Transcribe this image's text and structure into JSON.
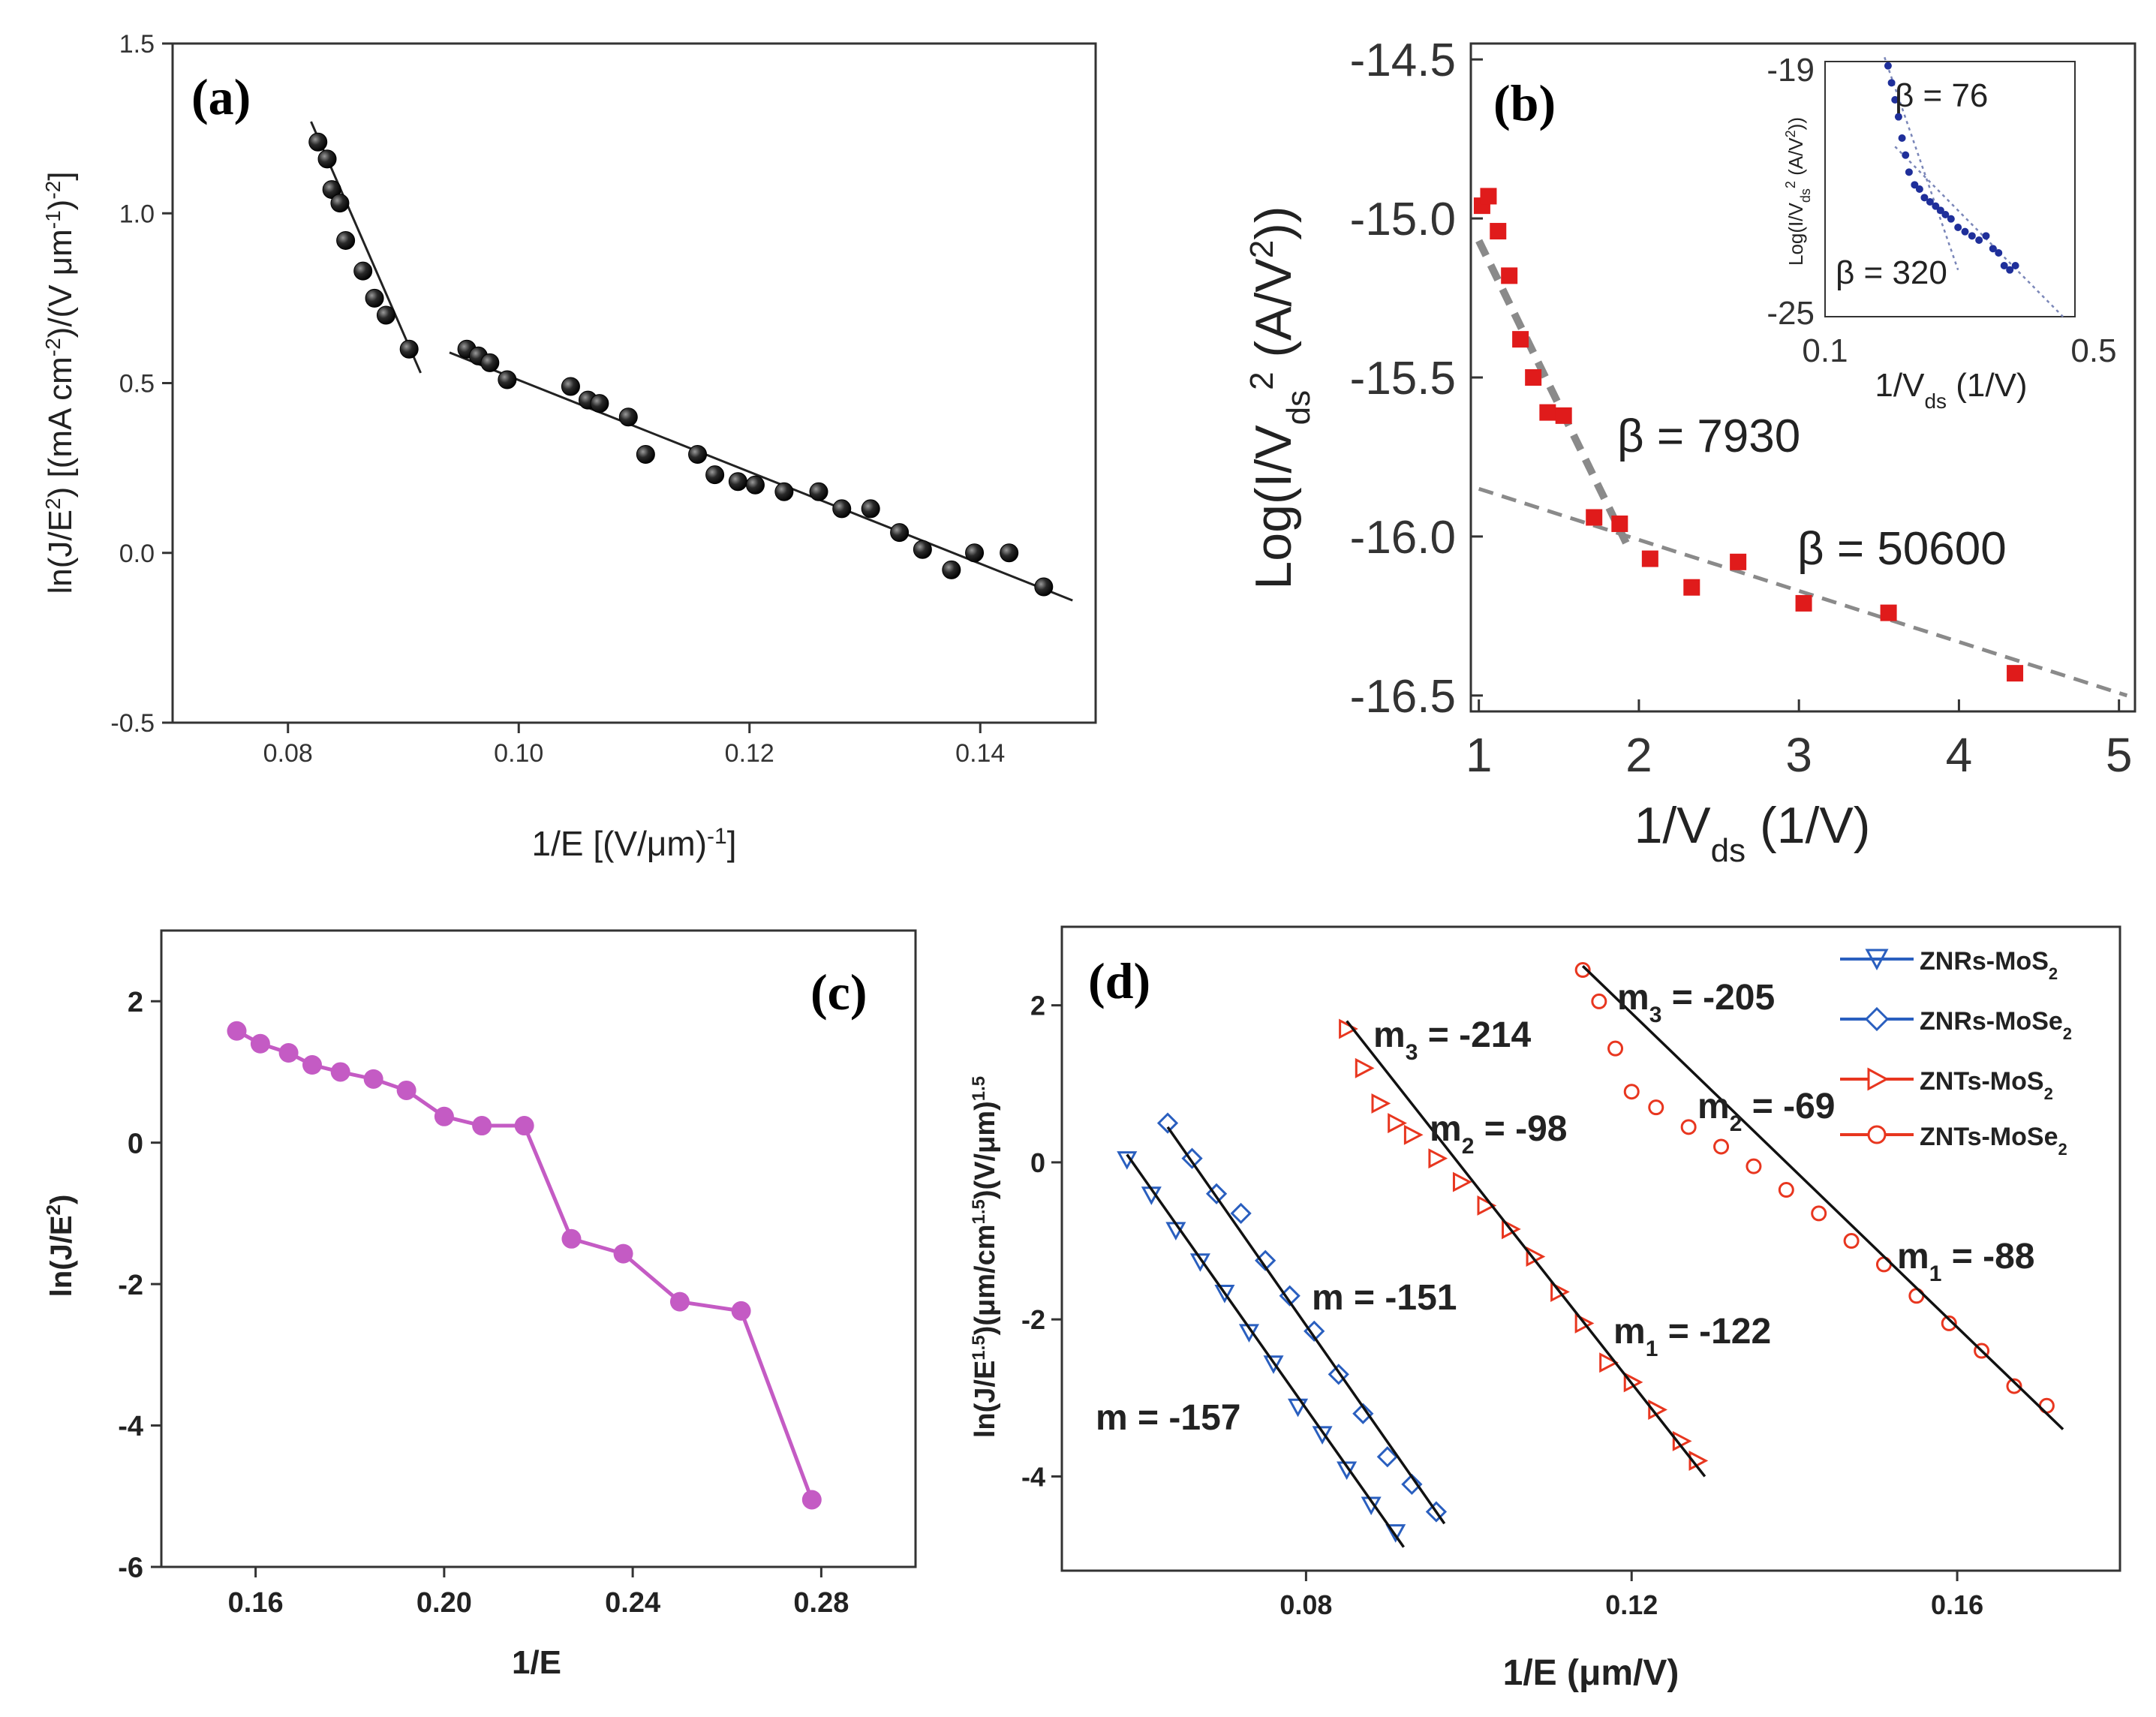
{
  "chart_data": [
    {
      "panel": "(a)",
      "type": "scatter",
      "xlabel": "1/E [(V/μm)-1]",
      "ylabel": "ln(J/E2) [(mA cm-2)/(V μm-1)-2]",
      "xlim": [
        0.07,
        0.15
      ],
      "ylim": [
        -0.5,
        1.5
      ],
      "xticks": [
        0.08,
        0.1,
        0.12,
        0.14
      ],
      "xtick_labels": [
        "0.08",
        "0.10",
        "0.12",
        "0.14"
      ],
      "yticks": [
        -0.5,
        0.0,
        0.5,
        1.0,
        1.5
      ],
      "ytick_labels": [
        "-0.5",
        "0.0",
        "0.5",
        "1.0",
        "1.5"
      ],
      "series": [
        {
          "name": "data",
          "x": [
            0.0826,
            0.0834,
            0.0838,
            0.0845,
            0.085,
            0.0865,
            0.0875,
            0.0885,
            0.0905,
            0.0955,
            0.0965,
            0.0975,
            0.099,
            0.1045,
            0.106,
            0.107,
            0.1095,
            0.111,
            0.1155,
            0.117,
            0.119,
            0.1205,
            0.123,
            0.126,
            0.128,
            0.1305,
            0.133,
            0.135,
            0.1375,
            0.1395,
            0.1425,
            0.1455
          ],
          "y": [
            1.21,
            1.16,
            1.07,
            1.03,
            0.92,
            0.83,
            0.75,
            0.7,
            0.6,
            0.6,
            0.58,
            0.56,
            0.51,
            0.49,
            0.45,
            0.44,
            0.4,
            0.29,
            0.29,
            0.23,
            0.21,
            0.2,
            0.18,
            0.18,
            0.13,
            0.13,
            0.06,
            0.01,
            -0.05,
            0.0,
            0.0,
            -0.1
          ]
        },
        {
          "name": "fit1",
          "x": [
            0.082,
            0.0915
          ],
          "y": [
            1.27,
            0.53
          ]
        },
        {
          "name": "fit2",
          "x": [
            0.094,
            0.148
          ],
          "y": [
            0.59,
            -0.14
          ]
        }
      ]
    },
    {
      "panel": "(b)",
      "type": "scatter",
      "xlabel": "1/Vds (1/V)",
      "ylabel": "Log(I/Vds2 (A/V2))",
      "xlim": [
        0.95,
        5.1
      ],
      "ylim": [
        -16.55,
        -14.45
      ],
      "xticks": [
        1,
        2,
        3,
        4,
        5
      ],
      "xtick_labels": [
        "1",
        "2",
        "3",
        "4",
        "5"
      ],
      "yticks": [
        -14.5,
        -15.0,
        -15.5,
        -16.0,
        -16.5
      ],
      "ytick_labels": [
        "-14.5",
        "-15.0",
        "-15.5",
        "-16.0",
        "-16.5"
      ],
      "series": [
        {
          "name": "data",
          "x": [
            1.02,
            1.06,
            1.12,
            1.19,
            1.26,
            1.34,
            1.43,
            1.53,
            1.72,
            1.88,
            2.07,
            2.33,
            2.62,
            3.03,
            3.56,
            4.35
          ],
          "y": [
            -14.96,
            -14.93,
            -15.04,
            -15.18,
            -15.38,
            -15.5,
            -15.61,
            -15.62,
            -15.94,
            -15.96,
            -16.07,
            -16.16,
            -16.08,
            -16.21,
            -16.24,
            -16.43
          ]
        },
        {
          "name": "fit_beta_7930",
          "x": [
            1.0,
            1.92
          ],
          "y": [
            -15.07,
            -16.02
          ]
        },
        {
          "name": "fit_beta_50600",
          "x": [
            1.0,
            5.05
          ],
          "y": [
            -15.85,
            -16.5
          ]
        }
      ],
      "annotations": [
        "β = 7930",
        "β = 50600"
      ],
      "inset": {
        "xlabel": "1/Vds (1/V)",
        "ylabel": "Log(I/Vds2 (A/V2))",
        "xlim": [
          0.1,
          0.5
        ],
        "ylim": [
          -25,
          -19
        ],
        "xtick_labels": [
          "0.1",
          "0.5"
        ],
        "ytick_labels": [
          "-19",
          "-25"
        ],
        "annotations": [
          "β = 76",
          "β = 320"
        ],
        "series": [
          {
            "name": "data",
            "x": [
              0.19,
              0.195,
              0.2,
              0.205,
              0.21,
              0.215,
              0.22,
              0.228,
              0.235,
              0.242,
              0.25,
              0.258,
              0.265,
              0.272,
              0.28,
              0.29,
              0.3,
              0.31,
              0.32,
              0.33,
              0.34,
              0.348,
              0.356,
              0.364,
              0.372
            ],
            "y": [
              -19.1,
              -19.5,
              -19.9,
              -20.3,
              -20.8,
              -21.2,
              -21.6,
              -21.9,
              -22.0,
              -22.2,
              -22.3,
              -22.4,
              -22.5,
              -22.6,
              -22.7,
              -22.9,
              -23.0,
              -23.1,
              -23.2,
              -23.1,
              -23.4,
              -23.5,
              -23.8,
              -23.9,
              -23.8
            ]
          },
          {
            "name": "fit_beta_76",
            "x": [
              0.185,
              0.29
            ],
            "y": [
              -18.9,
              -23.9
            ]
          },
          {
            "name": "fit_beta_320",
            "x": [
              0.2,
              0.44
            ],
            "y": [
              -21.0,
              -25.0
            ]
          }
        ]
      }
    },
    {
      "panel": "(c)",
      "type": "line",
      "xlabel": "1/E",
      "ylabel": "ln(J/E2)",
      "xlim": [
        0.14,
        0.3
      ],
      "ylim": [
        -6,
        3
      ],
      "xticks": [
        0.16,
        0.2,
        0.24,
        0.28
      ],
      "xtick_labels": [
        "0.16",
        "0.20",
        "0.24",
        "0.28"
      ],
      "yticks": [
        -6,
        -4,
        -2,
        0,
        2
      ],
      "ytick_labels": [
        "-6",
        "-4",
        "-2",
        "0",
        "2"
      ],
      "series": [
        {
          "name": "data",
          "x": [
            0.156,
            0.161,
            0.167,
            0.172,
            0.178,
            0.185,
            0.192,
            0.2,
            0.208,
            0.217,
            0.227,
            0.238,
            0.25,
            0.263,
            0.278
          ],
          "y": [
            1.58,
            1.4,
            1.27,
            1.1,
            1.0,
            0.9,
            0.74,
            0.37,
            0.24,
            0.24,
            -1.36,
            -1.57,
            -2.25,
            -2.38,
            -5.05
          ]
        }
      ]
    },
    {
      "panel": "(d)",
      "type": "scatter",
      "xlabel": "1/E (μm/V)",
      "ylabel": "ln(J/E1.5)(μm/cm1.5)(V/μm)1.5",
      "xlim": [
        0.05,
        0.18
      ],
      "ylim": [
        -5.2,
        3.0
      ],
      "xticks": [
        0.08,
        0.12,
        0.16
      ],
      "xtick_labels": [
        "0.08",
        "0.12",
        "0.16"
      ],
      "yticks": [
        -4,
        -2,
        0,
        2
      ],
      "ytick_labels": [
        "-4",
        "-2",
        "0",
        "2"
      ],
      "legend": [
        "ZNRs-MoS2",
        "ZNRs-MoSe2",
        "ZNTs-MoS2",
        "ZNTs-MoSe2"
      ],
      "series": [
        {
          "name": "ZNRs-MoS2",
          "color": "#2a5fbf",
          "marker": "triangle-down",
          "x": [
            0.058,
            0.061,
            0.064,
            0.067,
            0.07,
            0.073,
            0.076,
            0.079,
            0.082,
            0.085,
            0.088,
            0.091
          ],
          "y": [
            0.05,
            -0.4,
            -0.85,
            -1.25,
            -1.65,
            -2.15,
            -2.55,
            -3.1,
            -3.45,
            -3.9,
            -4.35,
            -4.7
          ],
          "fit": {
            "x": [
              0.058,
              0.092
            ],
            "y": [
              0.1,
              -4.9
            ]
          },
          "slope_label": "m = -157"
        },
        {
          "name": "ZNRs-MoSe2",
          "color": "#2a5fbf",
          "marker": "diamond",
          "x": [
            0.063,
            0.066,
            0.069,
            0.072,
            0.075,
            0.078,
            0.081,
            0.084,
            0.087,
            0.09,
            0.093,
            0.096
          ],
          "y": [
            0.5,
            0.05,
            -0.4,
            -0.65,
            -1.25,
            -1.7,
            -2.15,
            -2.7,
            -3.2,
            -3.75,
            -4.1,
            -4.45
          ],
          "fit": {
            "x": [
              0.063,
              0.097
            ],
            "y": [
              0.45,
              -4.6
            ]
          },
          "slope_label": "m = -151"
        },
        {
          "name": "ZNTs-MoS2",
          "color": "#e8361f",
          "marker": "triangle-right",
          "x": [
            0.085,
            0.087,
            0.089,
            0.091,
            0.093,
            0.096,
            0.099,
            0.102,
            0.105,
            0.108,
            0.111,
            0.114,
            0.117,
            0.12,
            0.123,
            0.126,
            0.128
          ],
          "y": [
            1.7,
            1.2,
            0.75,
            0.5,
            0.35,
            0.05,
            -0.25,
            -0.55,
            -0.85,
            -1.2,
            -1.65,
            -2.05,
            -2.55,
            -2.8,
            -3.15,
            -3.55,
            -3.8
          ],
          "fit": {
            "x": [
              0.085,
              0.129
            ],
            "y": [
              1.8,
              -4.0
            ]
          },
          "slope_labels": [
            "m3 = -214",
            "m2 = -98",
            "m1 = -122"
          ]
        },
        {
          "name": "ZNTs-MoSe2",
          "color": "#e8361f",
          "marker": "circle",
          "x": [
            0.114,
            0.116,
            0.118,
            0.12,
            0.123,
            0.127,
            0.131,
            0.135,
            0.139,
            0.143,
            0.147,
            0.151,
            0.155,
            0.159,
            0.163,
            0.167,
            0.171
          ],
          "y": [
            2.45,
            2.05,
            1.45,
            0.9,
            0.7,
            0.45,
            0.2,
            -0.05,
            -0.35,
            -0.65,
            -1.0,
            -1.3,
            -1.7,
            -2.05,
            -2.4,
            -2.85,
            -3.1
          ],
          "fit": {
            "x": [
              0.114,
              0.173
            ],
            "y": [
              2.5,
              -3.4
            ]
          },
          "slope_labels": [
            "m3 = -205",
            "m2 = -69",
            "m1 = -88"
          ]
        }
      ]
    }
  ],
  "labels": {
    "a": {
      "tag": "(a)",
      "xlabel_main": "1/E [(V/μm)",
      "xlabel_sup": "-1",
      "xlabel_end": "]",
      "ylabel_1": "ln(J/E",
      "ylabel_1s": "2",
      "ylabel_2": ") [(mA cm",
      "ylabel_2s": "-2",
      "ylabel_3": ")/(V μm",
      "ylabel_3s": "-1",
      "ylabel_4": ")",
      "ylabel_4s": "-2",
      "ylabel_5": "]"
    },
    "b": {
      "tag": "(b)",
      "xlabel_1": "1/V",
      "xlabel_1s": "ds",
      "xlabel_2": " (1/V)",
      "ylabel_1": "Log(I/V",
      "ylabel_1s": "ds",
      "ylabel_1p": "2",
      "ylabel_2": " (A/V",
      "ylabel_2p": "2",
      "ylabel_3": "))",
      "beta1": "β = 7930",
      "beta2": "β = 50600",
      "inset_xlabel_1": "1/V",
      "inset_xlabel_1s": "ds",
      "inset_xlabel_2": " (1/V)",
      "inset_ylabel_1": "Log(I/V",
      "inset_ylabel_1s": "ds",
      "inset_ylabel_1p": "2",
      "inset_ylabel_2": " (A/V",
      "inset_ylabel_2p": "2",
      "inset_ylabel_3": "))",
      "inset_beta1": "β = 76",
      "inset_beta2": "β = 320",
      "inset_xt1": "0.1",
      "inset_xt2": "0.5",
      "inset_yt1": "-19",
      "inset_yt2": "-25"
    },
    "c": {
      "tag": "(c)",
      "xlabel": "1/E",
      "ylabel_1": "ln(J/E",
      "ylabel_1s": "2",
      "ylabel_2": ")"
    },
    "d": {
      "tag": "(d)",
      "xlabel": "1/E (μm/V)",
      "ylabel_1": "ln(J/E",
      "ylabel_1s": "1.5",
      "ylabel_2": ")(μm/cm",
      "ylabel_2s": "1.5",
      "ylabel_3": ")(V/μm)",
      "ylabel_3s": "1.5",
      "m_znrs_mos2": "m = -157",
      "m_znrs_mose2": "m = -151",
      "mos2_m3": "m",
      "mos2_m3s": "3",
      "mos2_m3v": " = -214",
      "mos2_m2": "m",
      "mos2_m2s": "2",
      "mos2_m2v": " = -98",
      "mos2_m1": "m",
      "mos2_m1s": "1",
      "mos2_m1v": " = -122",
      "mose2_m3": "m",
      "mose2_m3s": "3",
      "mose2_m3v": " = -205",
      "mose2_m2": "m",
      "mose2_m2s": "2",
      "mose2_m2v": " = -69",
      "mose2_m1": "m",
      "mose2_m1s": "1",
      "mose2_m1v": " = -88",
      "leg1": "ZNRs-MoS",
      "leg1s": "2",
      "leg2": "ZNRs-MoSe",
      "leg2s": "2",
      "leg3": "ZNTs-MoS",
      "leg3s": "2",
      "leg4": "ZNTs-MoSe",
      "leg4s": "2"
    }
  },
  "colors": {
    "a_marker": "#1a1a1a",
    "b_marker": "#e01b1b",
    "b_fit": "#8a8a8a",
    "b_inset": "#1f2f9a",
    "c_line": "#c45bc4",
    "d_blue": "#2a5fbf",
    "d_red": "#e8361f",
    "fit": "#111111"
  }
}
